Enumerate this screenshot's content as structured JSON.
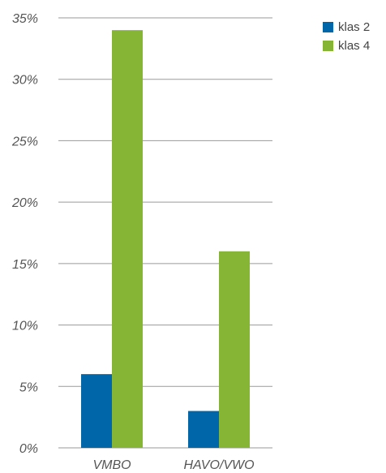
{
  "chart_data": {
    "type": "bar",
    "categories": [
      "VMBO",
      "HAVO/VWO"
    ],
    "series": [
      {
        "name": "klas 2",
        "color": "#0066aa",
        "values": [
          6,
          3
        ]
      },
      {
        "name": "klas 4",
        "color": "#86b535",
        "values": [
          34,
          16
        ]
      }
    ],
    "ylim": [
      0,
      35
    ],
    "yticks": [
      0,
      5,
      10,
      15,
      20,
      25,
      30,
      35
    ],
    "ytick_labels": [
      "0%",
      "5%",
      "10%",
      "15%",
      "20%",
      "25%",
      "30%",
      "35%"
    ],
    "grid": true,
    "legend_position": "top-right"
  }
}
